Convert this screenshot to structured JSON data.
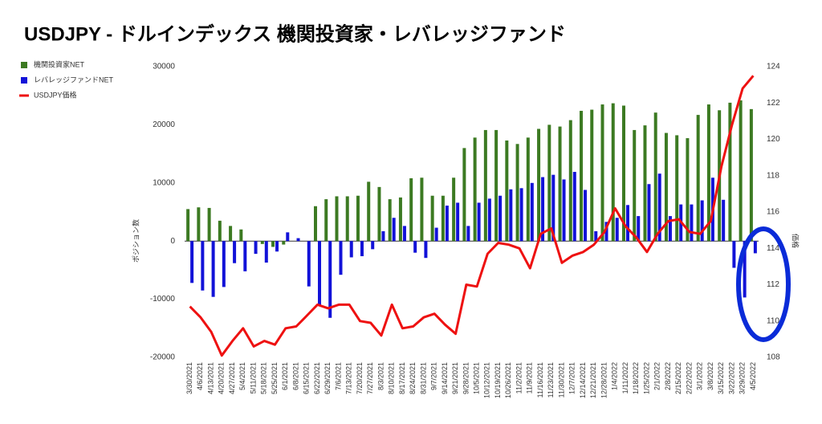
{
  "chart_data": {
    "type": "bar",
    "title": "USDJPY - ドルインデックス 機関投資家・レバレッジファンド",
    "y_label": "ポジション数",
    "y2_label": "価格",
    "categories": [
      "3/30/2021",
      "4/6/2021",
      "4/13/2021",
      "4/20/2021",
      "4/27/2021",
      "5/4/2021",
      "5/11/2021",
      "5/18/2021",
      "5/25/2021",
      "6/1/2021",
      "6/8/2021",
      "6/15/2021",
      "6/22/2021",
      "6/29/2021",
      "7/6/2021",
      "7/13/2021",
      "7/20/2021",
      "7/27/2021",
      "8/3/2021",
      "8/10/2021",
      "8/17/2021",
      "8/24/2021",
      "8/31/2021",
      "9/7/2021",
      "9/14/2021",
      "9/21/2021",
      "9/28/2021",
      "10/5/2021",
      "10/12/2021",
      "10/19/2021",
      "10/26/2021",
      "11/2/2021",
      "11/9/2021",
      "11/16/2021",
      "11/23/2021",
      "11/30/2021",
      "12/7/2021",
      "12/14/2021",
      "12/21/2021",
      "12/28/2021",
      "1/4/2022",
      "1/11/2022",
      "1/18/2022",
      "1/25/2022",
      "2/1/2022",
      "2/8/2022",
      "2/15/2022",
      "2/22/2022",
      "3/1/2022",
      "3/8/2022",
      "3/15/2022",
      "3/22/2022",
      "3/29/2022",
      "4/5/2022"
    ],
    "series": [
      {
        "name": "機関投資家NET",
        "type": "bar",
        "color": "#3c7a22",
        "values": [
          5500,
          5800,
          5700,
          3500,
          2600,
          2000,
          0,
          -500,
          -1000,
          -600,
          0,
          0,
          6000,
          7200,
          7700,
          7700,
          7800,
          10200,
          9300,
          7200,
          7500,
          10800,
          10900,
          7800,
          7800,
          10900,
          16000,
          17800,
          19100,
          19100,
          17300,
          16700,
          17800,
          19300,
          20000,
          19700,
          20800,
          22400,
          22600,
          23500,
          23700,
          23300,
          19100,
          19900,
          22100,
          18600,
          18200,
          17700,
          21700,
          23500,
          22500,
          23800,
          24200,
          22700
        ]
      },
      {
        "name": "レバレッジファンドNET",
        "type": "bar",
        "color": "#1212d8",
        "values": [
          -7200,
          -8500,
          -9600,
          -7900,
          -3800,
          -5200,
          -2200,
          -3700,
          -1800,
          1500,
          500,
          -7800,
          -11000,
          -13200,
          -5800,
          -2800,
          -2600,
          -1400,
          1700,
          4000,
          2600,
          -2000,
          -2900,
          2300,
          6100,
          6600,
          2600,
          6600,
          7300,
          7800,
          8900,
          9100,
          10000,
          11000,
          11400,
          10600,
          11900,
          8800,
          1700,
          3300,
          4000,
          6200,
          4300,
          9800,
          11600,
          4300,
          6300,
          6300,
          7000,
          10900,
          7100,
          -4600,
          -9700,
          -2100
        ]
      },
      {
        "name": "USDJPY価格",
        "type": "line",
        "axis": "y2",
        "color": "#ee1111",
        "values": [
          110.8,
          110.2,
          109.4,
          108.1,
          108.9,
          109.6,
          108.6,
          108.9,
          108.7,
          109.6,
          109.7,
          110.3,
          110.9,
          110.7,
          110.9,
          110.9,
          110.0,
          109.9,
          109.2,
          110.9,
          109.6,
          109.7,
          110.2,
          110.4,
          109.8,
          109.3,
          112.0,
          111.9,
          113.7,
          114.3,
          114.2,
          114.0,
          112.9,
          114.8,
          115.1,
          113.2,
          113.6,
          113.8,
          114.2,
          114.9,
          116.2,
          115.2,
          114.6,
          113.8,
          114.8,
          115.5,
          115.6,
          114.9,
          114.8,
          115.5,
          118.5,
          120.8,
          122.8,
          123.5
        ]
      }
    ],
    "ylim": [
      -20000,
      30000
    ],
    "yticks": [
      -20000,
      -10000,
      0,
      10000,
      20000,
      30000
    ],
    "y2lim": [
      108,
      124
    ],
    "y2ticks": [
      108,
      110,
      112,
      114,
      116,
      118,
      120,
      122,
      124
    ],
    "legend": "left"
  }
}
